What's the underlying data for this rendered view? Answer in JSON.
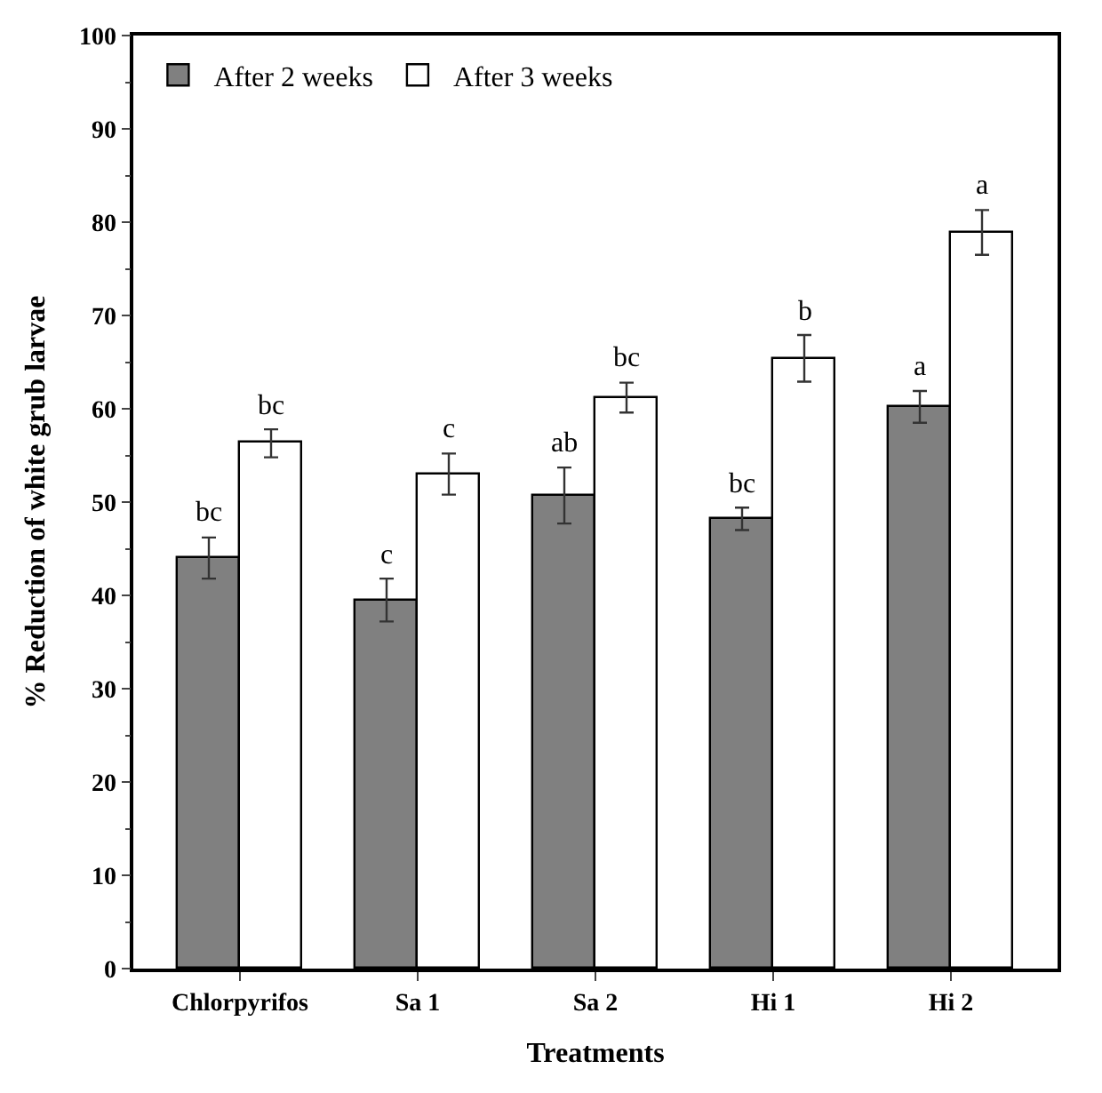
{
  "chart_data": {
    "type": "bar",
    "xlabel": "Treatments",
    "ylabel": "% Reduction of white grub larvae",
    "categories": [
      "Chlorpyrifos",
      "Sa 1",
      "Sa 2",
      "Hi 1",
      "Hi 2"
    ],
    "series": [
      {
        "name": "After 2 weeks",
        "color": "#808080",
        "values": [
          44.0,
          39.5,
          50.7,
          48.2,
          60.2
        ],
        "errors": [
          2.2,
          2.3,
          3.0,
          1.2,
          1.7
        ],
        "value_labels": [
          "bc",
          "c",
          "ab",
          "bc",
          "a"
        ]
      },
      {
        "name": "After 3 weeks",
        "color": "#ffffff",
        "values": [
          56.3,
          53.0,
          61.2,
          65.4,
          78.9
        ],
        "errors": [
          1.5,
          2.2,
          1.6,
          2.5,
          2.4
        ],
        "value_labels": [
          "bc",
          "c",
          "bc",
          "b",
          "a"
        ]
      }
    ],
    "ylim": [
      0,
      100
    ],
    "yticks": [
      0,
      10,
      20,
      30,
      40,
      50,
      60,
      70,
      80,
      90,
      100
    ],
    "legend": "top left"
  }
}
